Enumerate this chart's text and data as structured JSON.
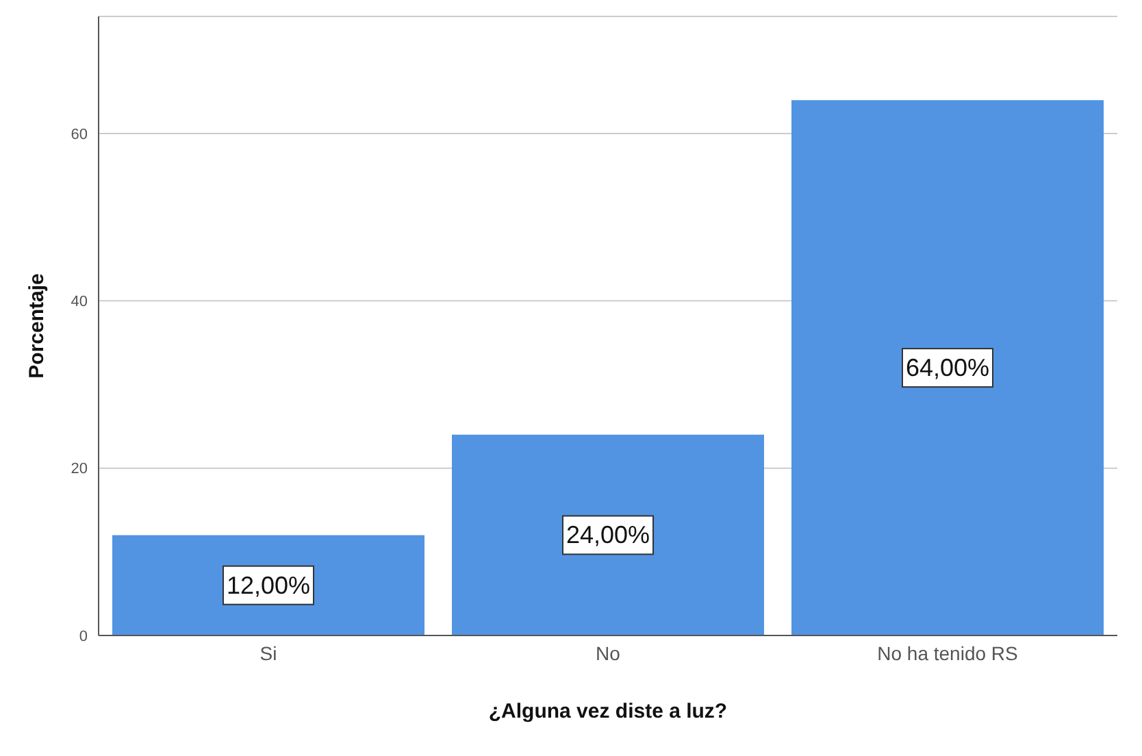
{
  "chart_data": {
    "type": "bar",
    "xlabel": "¿Alguna vez diste a luz?",
    "ylabel": "Porcentaje",
    "categories": [
      "Si",
      "No",
      "No ha tenido RS"
    ],
    "values": [
      12,
      24,
      64
    ],
    "color": "#5294e2",
    "value_labels": [
      "12,00%",
      "24,00%",
      "64,00%"
    ],
    "ylim": [
      0,
      74
    ],
    "yticks": [
      0,
      20,
      40,
      60
    ],
    "grid": "y"
  }
}
